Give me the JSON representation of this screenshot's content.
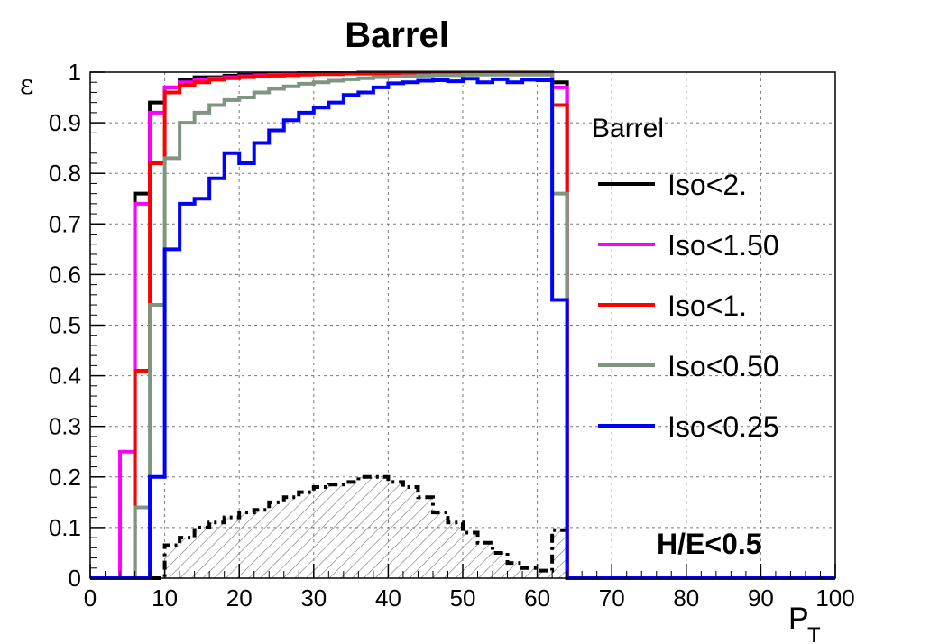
{
  "chart_data": {
    "type": "line",
    "title": "Barrel",
    "xlabel": "P",
    "xlabel_subscript": "T",
    "ylabel": "ε",
    "xlim": [
      0,
      100
    ],
    "ylim": [
      0,
      1
    ],
    "grid": true,
    "legend_placement": "right",
    "legend_header": "Barrel",
    "annotation": "H/E<0.5",
    "x_ticks": [
      "0",
      "10",
      "20",
      "30",
      "40",
      "50",
      "60",
      "70",
      "80",
      "90",
      "100"
    ],
    "y_ticks": [
      "0",
      "0.1",
      "0.2",
      "0.3",
      "0.4",
      "0.5",
      "0.6",
      "0.7",
      "0.8",
      "0.9",
      "1"
    ],
    "bin_edges": [
      0,
      2,
      4,
      6,
      8,
      10,
      12,
      14,
      16,
      18,
      20,
      22,
      24,
      26,
      28,
      30,
      32,
      34,
      36,
      38,
      40,
      42,
      44,
      46,
      48,
      50,
      52,
      54,
      56,
      58,
      60,
      62,
      64,
      66,
      68,
      70,
      72,
      74,
      76,
      78,
      80,
      82,
      84,
      86,
      88,
      90,
      92,
      94,
      96,
      98,
      100
    ],
    "series": [
      {
        "name": "Iso<2.",
        "color": "#000000",
        "values": [
          0,
          0,
          0,
          0.76,
          0.94,
          0.97,
          0.985,
          0.99,
          0.99,
          0.993,
          0.995,
          0.996,
          0.997,
          0.997,
          0.998,
          0.998,
          0.998,
          0.998,
          0.999,
          0.999,
          0.999,
          0.999,
          0.999,
          0.999,
          0.999,
          0.999,
          0.999,
          0.999,
          0.999,
          0.999,
          0.999,
          0.98,
          0,
          0,
          0,
          0,
          0,
          0,
          0,
          0,
          0,
          0,
          0,
          0,
          0,
          0,
          0,
          0,
          0,
          0
        ]
      },
      {
        "name": "Iso<1.50",
        "color": "#ff00ff",
        "values": [
          0,
          0,
          0.25,
          0.74,
          0.92,
          0.97,
          0.98,
          0.985,
          0.988,
          0.99,
          0.992,
          0.994,
          0.995,
          0.996,
          0.997,
          0.997,
          0.997,
          0.998,
          0.998,
          0.998,
          0.998,
          0.998,
          0.998,
          0.998,
          0.998,
          0.998,
          0.998,
          0.998,
          0.998,
          0.998,
          0.998,
          0.97,
          0,
          0,
          0,
          0,
          0,
          0,
          0,
          0,
          0,
          0,
          0,
          0,
          0,
          0,
          0,
          0,
          0,
          0
        ]
      },
      {
        "name": "Iso<1.",
        "color": "#ff0000",
        "values": [
          0,
          0,
          0,
          0.41,
          0.82,
          0.96,
          0.975,
          0.98,
          0.985,
          0.988,
          0.99,
          0.992,
          0.993,
          0.994,
          0.995,
          0.996,
          0.996,
          0.997,
          0.997,
          0.997,
          0.997,
          0.997,
          0.997,
          0.997,
          0.997,
          0.997,
          0.997,
          0.997,
          0.997,
          0.997,
          0.997,
          0.935,
          0,
          0,
          0,
          0,
          0,
          0,
          0,
          0,
          0,
          0,
          0,
          0,
          0,
          0,
          0,
          0,
          0,
          0
        ]
      },
      {
        "name": "Iso<0.50",
        "color": "#7f9580",
        "values": [
          0,
          0,
          0,
          0.14,
          0.54,
          0.83,
          0.9,
          0.92,
          0.935,
          0.945,
          0.95,
          0.96,
          0.967,
          0.972,
          0.977,
          0.98,
          0.983,
          0.986,
          0.988,
          0.99,
          0.991,
          0.992,
          0.993,
          0.994,
          0.994,
          0.995,
          0.995,
          0.995,
          0.995,
          0.995,
          0.995,
          0.76,
          0,
          0,
          0,
          0,
          0,
          0,
          0,
          0,
          0,
          0,
          0,
          0,
          0,
          0,
          0,
          0,
          0,
          0
        ]
      },
      {
        "name": "Iso<0.25",
        "color": "#0000ff",
        "values": [
          0,
          0,
          0,
          0,
          0.2,
          0.65,
          0.74,
          0.75,
          0.79,
          0.84,
          0.82,
          0.86,
          0.885,
          0.905,
          0.92,
          0.93,
          0.94,
          0.955,
          0.96,
          0.97,
          0.978,
          0.98,
          0.983,
          0.984,
          0.982,
          0.987,
          0.98,
          0.986,
          0.98,
          0.985,
          0.984,
          0.55,
          0,
          0,
          0,
          0,
          0,
          0,
          0,
          0,
          0,
          0,
          0,
          0,
          0,
          0,
          0,
          0,
          0,
          0
        ]
      }
    ],
    "distribution": {
      "style": "dash-dot, hatched",
      "color": "#000000",
      "values": [
        0,
        0,
        0,
        0,
        0,
        0.065,
        0.08,
        0.1,
        0.11,
        0.12,
        0.13,
        0.135,
        0.15,
        0.16,
        0.17,
        0.18,
        0.185,
        0.19,
        0.2,
        0.2,
        0.19,
        0.18,
        0.16,
        0.13,
        0.11,
        0.09,
        0.07,
        0.05,
        0.03,
        0.02,
        0.015,
        0.095,
        0,
        0,
        0,
        0,
        0,
        0,
        0,
        0,
        0,
        0,
        0,
        0,
        0,
        0,
        0,
        0,
        0,
        0
      ]
    }
  }
}
